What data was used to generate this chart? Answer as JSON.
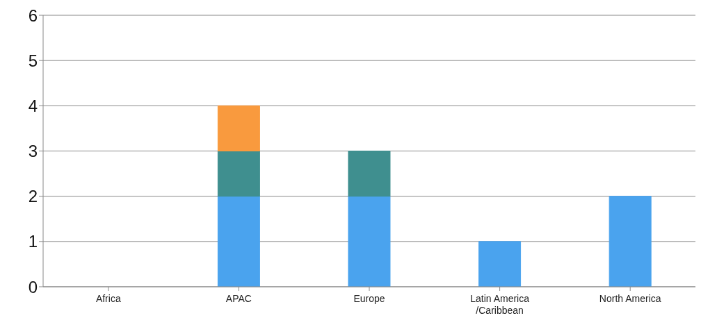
{
  "chart_data": {
    "type": "bar",
    "stacked": true,
    "categories": [
      "Africa",
      "APAC",
      "Europe",
      "Latin America /Caribbean",
      "North America"
    ],
    "series": [
      {
        "color": "#4aa3ee",
        "values": [
          0,
          2,
          2,
          1,
          2
        ]
      },
      {
        "color": "#3f8f8f",
        "values": [
          0,
          1,
          1,
          0,
          0
        ]
      },
      {
        "color": "#f99a3e",
        "values": [
          0,
          1,
          0,
          0,
          0
        ]
      }
    ],
    "ylim": [
      0,
      6
    ],
    "yticks": [
      0,
      1,
      2,
      3,
      4,
      5,
      6
    ],
    "grid": "y",
    "legend": false
  }
}
